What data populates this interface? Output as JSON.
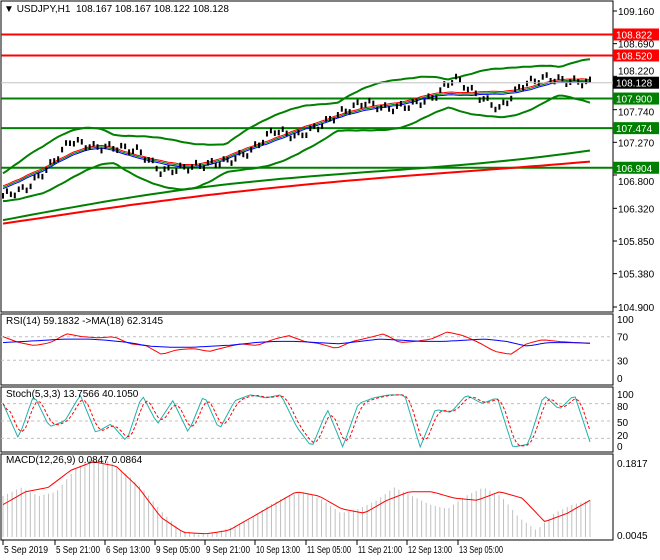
{
  "header": {
    "symbol": "USDJPY,H1",
    "ohlc": "108.167 108.167 108.122 108.128"
  },
  "price_axis": [
    "109.160",
    "108.690",
    "108.220",
    "107.740",
    "107.270",
    "106.800",
    "106.320",
    "105.850",
    "105.380",
    "104.900"
  ],
  "levels": [
    {
      "value": 108.822,
      "label": "108.822",
      "color": "#ff0000"
    },
    {
      "value": 108.52,
      "label": "108.520",
      "color": "#ff0000"
    },
    {
      "value": 107.9,
      "label": "107.900",
      "color": "#008000"
    },
    {
      "value": 107.474,
      "label": "107.474",
      "color": "#008000"
    },
    {
      "value": 106.904,
      "label": "106.904",
      "color": "#008000"
    }
  ],
  "current_price": {
    "value": 108.128,
    "label": "108.128"
  },
  "close": [
    106.5,
    106.6,
    106.9,
    107.3,
    107.2,
    107.2,
    107.15,
    106.85,
    106.9,
    106.95,
    107.0,
    107.15,
    107.45,
    107.35,
    107.5,
    107.7,
    107.85,
    107.75,
    107.8,
    107.9,
    108.2,
    107.95,
    107.75,
    108.1,
    108.2,
    108.15,
    108.13
  ],
  "ma_slow": [
    106.15,
    107.25
  ],
  "ma_red": [
    106.1,
    107.05
  ],
  "rsi": {
    "label": "RSI(14) 59.1832  ->MA(18) 62.3145",
    "axis": [
      "100",
      "70",
      "30",
      "0"
    ],
    "values": [
      70,
      60,
      55,
      60,
      75,
      70,
      68,
      70,
      58,
      55,
      40,
      48,
      50,
      45,
      52,
      58,
      55,
      65,
      72,
      62,
      58,
      50,
      62,
      68,
      75,
      60,
      62,
      66,
      78,
      72,
      60,
      45,
      40,
      58,
      65,
      62,
      60,
      59
    ],
    "ma": [
      60,
      62,
      64,
      66,
      66,
      64,
      60,
      54,
      52,
      52,
      54,
      56,
      60,
      62,
      62,
      60,
      58,
      62,
      66,
      64,
      62,
      62,
      64,
      66,
      62,
      54,
      60,
      60,
      59
    ]
  },
  "stoch": {
    "label": "Stoch(5,3,3) 13.7566 40.1050",
    "axis": [
      "100",
      "80",
      "50",
      "20",
      "0"
    ],
    "main": [
      80,
      20,
      95,
      40,
      50,
      95,
      30,
      45,
      15,
      95,
      45,
      85,
      30,
      95,
      35,
      85,
      95,
      90,
      95,
      40,
      5,
      70,
      5,
      80,
      90,
      95,
      95,
      5,
      70,
      65,
      95,
      80,
      90,
      5,
      10,
      95,
      70,
      95,
      14
    ]
  },
  "macd": {
    "label": "MACD(12,26,9) 0.0847 0.0864",
    "axis": [
      "0.1817",
      "0.0045"
    ],
    "hist": [
      0.1,
      0.12,
      0.1,
      0.11,
      0.16,
      0.19,
      0.18,
      0.15,
      0.11,
      0.06,
      0.02,
      0.01,
      0.015,
      0.03,
      0.05,
      0.08,
      0.1,
      0.11,
      0.09,
      0.06,
      0.07,
      0.09,
      0.12,
      0.1,
      0.08,
      0.07,
      0.1,
      0.12,
      0.1,
      0.05,
      0.02,
      0.06,
      0.08,
      0.09
    ],
    "signal": [
      0.08,
      0.11,
      0.12,
      0.16,
      0.18,
      0.17,
      0.12,
      0.05,
      0.015,
      0.012,
      0.02,
      0.05,
      0.08,
      0.11,
      0.1,
      0.07,
      0.06,
      0.09,
      0.11,
      0.11,
      0.095,
      0.09,
      0.11,
      0.095,
      0.04,
      0.06,
      0.09
    ]
  },
  "time_axis": [
    "5 Sep 2019",
    "5 Sep 21:00",
    "6 Sep 13:00",
    "9 Sep 05:00",
    "9 Sep 21:00",
    "10 Sep 13:00",
    "11 Sep 05:00",
    "11 Sep 21:00",
    "12 Sep 13:00",
    "13 Sep 05:00"
  ]
}
